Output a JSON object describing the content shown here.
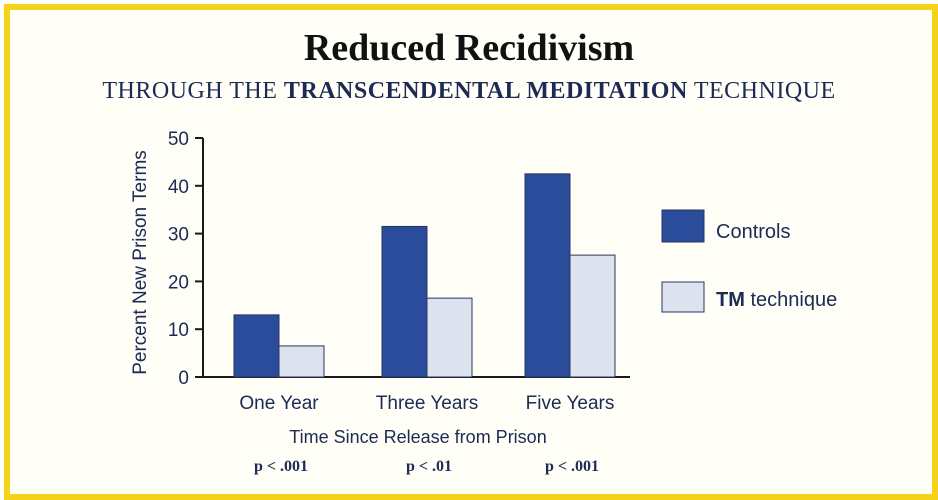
{
  "title": "Reduced Recidivism",
  "subtitle": {
    "prefix": "THROUGH THE ",
    "bold": "TRANSCENDENTAL MEDITATION",
    "suffix": " TECHNIQUE"
  },
  "colors": {
    "controls": "#2b4c9b",
    "tm": "#dde2ef",
    "frame": "#f5d21c",
    "text": "#1c2a55"
  },
  "chart_data": {
    "type": "bar",
    "ylabel": "Percent New Prison Terms",
    "xlabel": "Time Since Release from Prison",
    "ylim": [
      0,
      50
    ],
    "yticks": [
      0,
      10,
      20,
      30,
      40,
      50
    ],
    "categories": [
      "One Year",
      "Three Years",
      "Five Years"
    ],
    "series": [
      {
        "name": "Controls",
        "values": [
          13,
          31.5,
          42.5
        ]
      },
      {
        "name": "TM technique",
        "name_bold": "TM",
        "name_rest": " technique",
        "values": [
          6.5,
          16.5,
          25.5
        ]
      }
    ],
    "annotations": [
      "p < .001",
      "p < .01",
      "p < .001"
    ],
    "legend_position": "right"
  }
}
